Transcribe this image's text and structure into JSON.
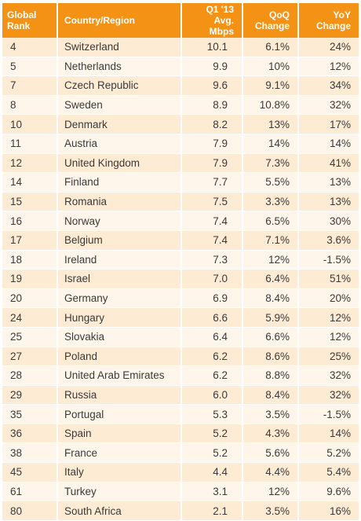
{
  "headers": {
    "rank": [
      "Global",
      "Rank"
    ],
    "country": "Country/Region",
    "speed": [
      "Q1 '13",
      "Avg. Mbps"
    ],
    "qoq": [
      "QoQ",
      "Change"
    ],
    "yoy": [
      "YoY",
      "Change"
    ]
  },
  "rows": [
    {
      "rank": "4",
      "country": "Switzerland",
      "speed": "10.1",
      "qoq": "6.1%",
      "yoy": "24%"
    },
    {
      "rank": "5",
      "country": "Netherlands",
      "speed": "9.9",
      "qoq": "10%",
      "yoy": "12%"
    },
    {
      "rank": "7",
      "country": "Czech Republic",
      "speed": "9.6",
      "qoq": "9.1%",
      "yoy": "34%"
    },
    {
      "rank": "8",
      "country": "Sweden",
      "speed": "8.9",
      "qoq": "10.8%",
      "yoy": "32%"
    },
    {
      "rank": "10",
      "country": "Denmark",
      "speed": "8.2",
      "qoq": "13%",
      "yoy": "17%"
    },
    {
      "rank": "11",
      "country": "Austria",
      "speed": "7.9",
      "qoq": "14%",
      "yoy": "14%"
    },
    {
      "rank": "12",
      "country": "United Kingdom",
      "speed": "7.9",
      "qoq": "7.3%",
      "yoy": "41%"
    },
    {
      "rank": "14",
      "country": "Finland",
      "speed": "7.7",
      "qoq": "5.5%",
      "yoy": "13%"
    },
    {
      "rank": "15",
      "country": "Romania",
      "speed": "7.5",
      "qoq": "3.3%",
      "yoy": "13%"
    },
    {
      "rank": "16",
      "country": "Norway",
      "speed": "7.4",
      "qoq": "6.5%",
      "yoy": "30%"
    },
    {
      "rank": "17",
      "country": "Belgium",
      "speed": "7.4",
      "qoq": "7.1%",
      "yoy": "3.6%"
    },
    {
      "rank": "18",
      "country": "Ireland",
      "speed": "7.3",
      "qoq": "12%",
      "yoy": "-1.5%"
    },
    {
      "rank": "19",
      "country": "Israel",
      "speed": "7.0",
      "qoq": "6.4%",
      "yoy": "51%"
    },
    {
      "rank": "20",
      "country": "Germany",
      "speed": "6.9",
      "qoq": "8.4%",
      "yoy": "20%"
    },
    {
      "rank": "24",
      "country": "Hungary",
      "speed": "6.6",
      "qoq": "5.9%",
      "yoy": "12%"
    },
    {
      "rank": "25",
      "country": "Slovakia",
      "speed": "6.4",
      "qoq": "6.6%",
      "yoy": "12%"
    },
    {
      "rank": "27",
      "country": "Poland",
      "speed": "6.2",
      "qoq": "8.6%",
      "yoy": "25%"
    },
    {
      "rank": "28",
      "country": "United Arab Emirates",
      "speed": "6.2",
      "qoq": "8.8%",
      "yoy": "32%"
    },
    {
      "rank": "29",
      "country": "Russia",
      "speed": "6.0",
      "qoq": "8.4%",
      "yoy": "32%"
    },
    {
      "rank": "35",
      "country": "Portugal",
      "speed": "5.3",
      "qoq": "3.5%",
      "yoy": "-1.5%"
    },
    {
      "rank": "36",
      "country": "Spain",
      "speed": "5.2",
      "qoq": "4.3%",
      "yoy": "14%"
    },
    {
      "rank": "38",
      "country": "France",
      "speed": "5.2",
      "qoq": "5.6%",
      "yoy": "5.2%"
    },
    {
      "rank": "45",
      "country": "Italy",
      "speed": "4.4",
      "qoq": "4.4%",
      "yoy": "5.4%"
    },
    {
      "rank": "61",
      "country": "Turkey",
      "speed": "3.1",
      "qoq": "12%",
      "yoy": "9.6%"
    },
    {
      "rank": "80",
      "country": "South Africa",
      "speed": "2.1",
      "qoq": "3.5%",
      "yoy": "16%"
    }
  ],
  "colors": {
    "header_bg": "#f39214",
    "header_text": "#ffffff",
    "row_odd": "#fdebd3",
    "row_even": "#fef6ea",
    "text": "#3a3a3a"
  }
}
